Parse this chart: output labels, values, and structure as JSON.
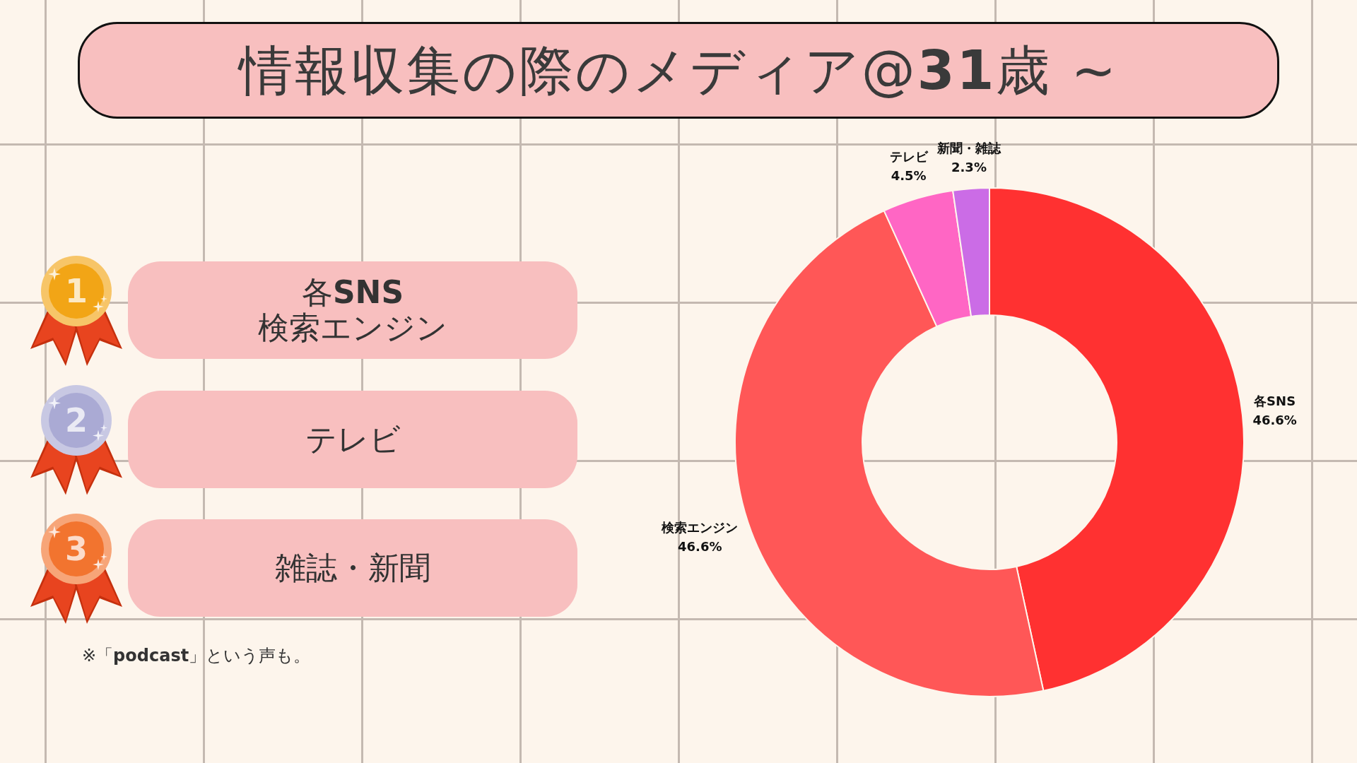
{
  "chart_data": [
    {
      "type": "donut",
      "title": "情報収集の際のメディア@31歳 ~",
      "categories": [
        "各SNS",
        "検索エンジン",
        "テレビ",
        "新聞・雑誌"
      ],
      "values": [
        46.6,
        46.6,
        4.5,
        2.3
      ],
      "colors": [
        "#ff3131",
        "#ff5757",
        "#ff66c4",
        "#cb6ce6"
      ],
      "value_labels": [
        "46.6%",
        "46.6%",
        "4.5%",
        "2.3%"
      ]
    },
    {
      "type": "other",
      "categories": [
        "各SNS\n検索エンジン",
        "テレビ",
        "雑誌・新聞"
      ],
      "values": [
        1,
        2,
        3
      ],
      "colors": [
        "#f2a516",
        "#aaaad4",
        "#f2742f"
      ],
      "data_labels": true,
      "annotations": [
        "※「podcast」という声も。"
      ]
    }
  ]
}
